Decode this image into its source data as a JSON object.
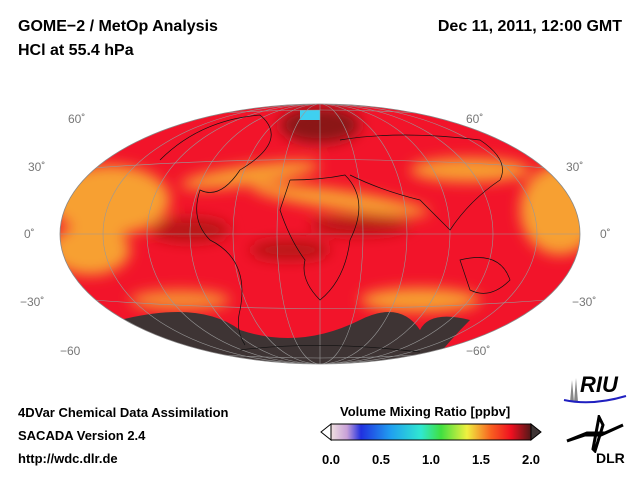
{
  "header": {
    "title_line1": "GOME−2 / MetOp Analysis",
    "title_line2": "HCl at 55.4 hPa",
    "datetime": "Dec 11, 2011, 12:00 GMT"
  },
  "map": {
    "projection": "Hammer/Mollweide global",
    "lat_labels_left": [
      "60˚",
      "30˚",
      "0˚",
      "−30˚",
      "−60"
    ],
    "lat_labels_right": [
      "60˚",
      "30˚",
      "0˚",
      "−30˚",
      "−60˚"
    ],
    "colors": {
      "base": "#f2142a",
      "orange": "#f7a030",
      "dark_red": "#b81818",
      "very_dark": "#3e3434",
      "cyan": "#3fd0f0"
    }
  },
  "footer": {
    "line1": "4DVar Chemical Data Assimilation",
    "line2": "SACADA Version 2.4",
    "line3": "http://wdc.dlr.de"
  },
  "colorbar": {
    "title": "Volume Mixing Ratio [ppbv]",
    "ticks": [
      "0.0",
      "0.5",
      "1.0",
      "1.5",
      "2.0"
    ],
    "range": [
      0.0,
      2.0
    ]
  },
  "logos": {
    "riu": "RIU",
    "dlr": "DLR"
  }
}
